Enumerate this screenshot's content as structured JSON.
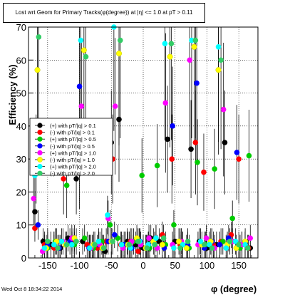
{
  "chart_data": {
    "type": "scatter",
    "title": "Lost wrt Geom for Primary Tracks(φ(degree)) at |η| <= 1.0 at pT > 0.11",
    "xlabel": "φ (degree)",
    "ylabel": "Efficiency (%)",
    "xlim": [
      -180,
      180
    ],
    "ylim": [
      0,
      70
    ],
    "xticks": [
      -150,
      -100,
      -50,
      0,
      50,
      100,
      150
    ],
    "yticks": [
      0,
      10,
      20,
      30,
      40,
      50,
      60,
      70
    ],
    "grid": true,
    "legend_position": "left-center",
    "series": [
      {
        "name": "(+) with pT/|q| > 0.1",
        "color": "#000000",
        "x": [
          -170,
          -157,
          -145,
          -130,
          -118,
          -105,
          -95,
          -80,
          -70,
          -60,
          -50,
          -38,
          -25,
          -12,
          0,
          12,
          25,
          38,
          50,
          62,
          75,
          88,
          100,
          115,
          128,
          140,
          155,
          168
        ],
        "y": [
          14,
          5,
          4,
          3,
          6,
          24,
          5,
          3,
          4,
          2,
          35,
          42,
          5,
          4,
          3,
          6,
          5,
          36,
          5,
          4,
          33,
          5,
          3,
          4,
          35,
          5,
          4,
          3
        ]
      },
      {
        "name": "(-) with pT/|q| > 0.1",
        "color": "#ff0000",
        "x": [
          -170,
          -155,
          -140,
          -125,
          -110,
          -100,
          -88,
          -72,
          -58,
          -48,
          -35,
          -20,
          -8,
          5,
          18,
          30,
          45,
          58,
          70,
          82,
          95,
          110,
          122,
          138,
          150,
          165
        ],
        "y": [
          9,
          4,
          3,
          24,
          5,
          27,
          4,
          3,
          5,
          30,
          4,
          5,
          2,
          3,
          4,
          7,
          30,
          4,
          3,
          35,
          26,
          4,
          5,
          7,
          30,
          3
        ]
      },
      {
        "name": "(+) with pT/|q| > 0.5",
        "color": "#00cc00",
        "x": [
          -168,
          -150,
          -138,
          -120,
          -108,
          -92,
          -78,
          -65,
          -52,
          -40,
          -28,
          -15,
          -2,
          10,
          22,
          35,
          48,
          60,
          72,
          85,
          98,
          112,
          125,
          140,
          152,
          166
        ],
        "y": [
          30,
          3,
          5,
          22,
          4,
          6,
          3,
          5,
          10,
          6,
          4,
          5,
          25,
          3,
          28,
          4,
          10,
          5,
          3,
          29,
          4,
          27,
          5,
          12,
          3,
          31
        ]
      },
      {
        "name": "(-) with pT/|q| > 0.5",
        "color": "#0000ff",
        "x": [
          -165,
          -150,
          -132,
          -115,
          -100,
          -85,
          -70,
          -55,
          -45,
          -30,
          -18,
          -5,
          8,
          20,
          33,
          46,
          58,
          70,
          84,
          96,
          108,
          120,
          134,
          147,
          160
        ],
        "y": [
          10,
          4,
          3,
          5,
          52,
          3,
          4,
          5,
          7,
          4,
          3,
          5,
          4,
          6,
          3,
          40,
          5,
          4,
          53,
          3,
          5,
          4,
          6,
          32,
          4
        ]
      },
      {
        "name": "(+) with pT/|q| > 1.0",
        "color": "#ff00ff",
        "x": [
          -172,
          -158,
          -140,
          -126,
          -112,
          -97,
          -82,
          -68,
          -55,
          -44,
          -32,
          -18,
          -4,
          9,
          22,
          35,
          46,
          60,
          73,
          86,
          99,
          112,
          126,
          140,
          155,
          168
        ],
        "y": [
          18,
          2,
          4,
          5,
          6,
          46,
          3,
          4,
          12,
          46,
          3,
          5,
          4,
          6,
          3,
          47,
          4,
          5,
          60,
          4,
          6,
          3,
          45,
          5,
          4,
          6
        ]
      },
      {
        "name": "(-) with pT/|q| > 1.0",
        "color": "#ffff00",
        "x": [
          -166,
          -152,
          -136,
          -122,
          -108,
          -93,
          -78,
          -64,
          -50,
          -38,
          -24,
          -10,
          4,
          16,
          30,
          42,
          56,
          68,
          80,
          92,
          106,
          118,
          132,
          146,
          160
        ],
        "y": [
          57,
          3,
          5,
          4,
          6,
          63,
          4,
          3,
          5,
          62,
          4,
          6,
          3,
          5,
          4,
          61,
          5,
          3,
          64,
          4,
          5,
          57,
          4,
          3,
          5
        ]
      },
      {
        "name": "(+) with pT/|q| > 2.0",
        "color": "#00ffff",
        "x": [
          -170,
          -155,
          -140,
          -128,
          -112,
          -98,
          -84,
          -70,
          -56,
          -46,
          -34,
          -20,
          -6,
          8,
          20,
          34,
          48,
          62,
          76,
          90,
          104,
          118,
          130,
          145,
          160
        ],
        "y": [
          25,
          3,
          4,
          5,
          4,
          66,
          3,
          5,
          13,
          70,
          4,
          3,
          5,
          4,
          6,
          65,
          3,
          4,
          66,
          5,
          4,
          64,
          3,
          5,
          4
        ]
      },
      {
        "name": "(-) with pT/|q| > 2.0",
        "color": "#33cc66",
        "x": [
          -164,
          -150,
          -134,
          -120,
          -105,
          -90,
          -76,
          -62,
          -48,
          -36,
          -22,
          -8,
          6,
          18,
          32,
          44,
          58,
          70,
          82,
          96,
          108,
          122,
          136,
          150,
          164
        ],
        "y": [
          67,
          5,
          3,
          4,
          5,
          61,
          4,
          3,
          5,
          66,
          4,
          5,
          3,
          4,
          6,
          65,
          3,
          5,
          66,
          4,
          3,
          60,
          5,
          4,
          3
        ]
      }
    ]
  },
  "footer": {
    "timestamp": "Wed Oct  8 18:34:22 2014"
  }
}
